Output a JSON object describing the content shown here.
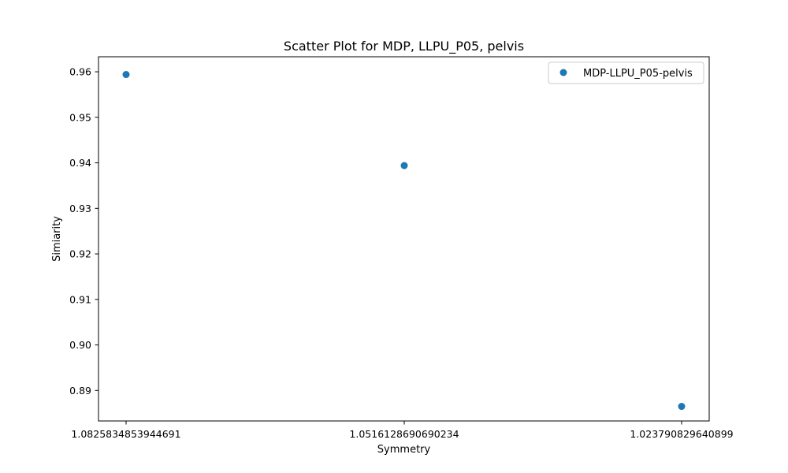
{
  "chart_data": {
    "type": "scatter",
    "title": "Scatter Plot for MDP, LLPU_P05, pelvis",
    "xlabel": "Symmetry",
    "ylabel": "Simiarity",
    "x_axis_type": "categorical",
    "categories": [
      "1.0825834853944691",
      "1.0516128690690234",
      "1.023790829640899"
    ],
    "ylim": [
      0.8833,
      0.9633
    ],
    "yticks": [
      0.89,
      0.9,
      0.91,
      0.92,
      0.93,
      0.94,
      0.95,
      0.96
    ],
    "ytick_labels": [
      "0.89",
      "0.90",
      "0.91",
      "0.92",
      "0.93",
      "0.94",
      "0.95",
      "0.96"
    ],
    "series": [
      {
        "name": "MDP-LLPU_P05-pelvis",
        "color": "#1f77b4",
        "values": [
          0.9594,
          0.9394,
          0.8865
        ]
      }
    ],
    "grid": false,
    "legend_position": "top-right"
  }
}
